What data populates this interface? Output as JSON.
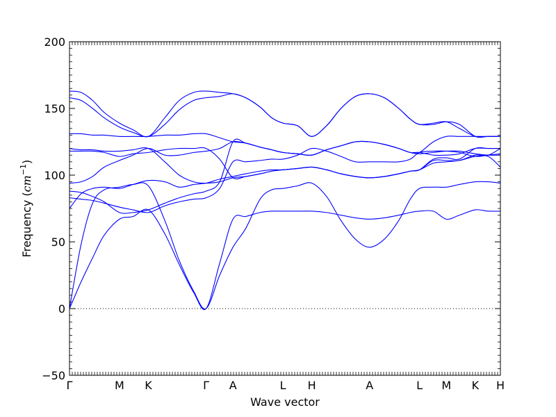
{
  "chart_data": {
    "type": "line",
    "title": "",
    "xlabel": "Wave vector",
    "ylabel": "Frequency (cm⁻¹)",
    "ylabel_text": "Frequency (",
    "ylabel_unit_base": "cm",
    "ylabel_unit_exp": "−1",
    "ylabel_close": ")",
    "ylim": [
      -50,
      200
    ],
    "yticks": [
      -50,
      0,
      50,
      100,
      150,
      200
    ],
    "xlim": [
      0,
      14.92
    ],
    "xticks": [
      {
        "label": "Γ",
        "x": 0
      },
      {
        "label": "M",
        "x": 1.73
      },
      {
        "label": "K",
        "x": 2.73
      },
      {
        "label": "Γ",
        "x": 4.73
      },
      {
        "label": "A",
        "x": 5.66
      },
      {
        "label": "L",
        "x": 7.39
      },
      {
        "label": "H",
        "x": 8.39
      },
      {
        "label": "A",
        "x": 10.39
      },
      {
        "label": "L",
        "x": 12.12
      },
      {
        "label": "M",
        "x": 13.05
      },
      {
        "label": "K",
        "x": 14.05
      },
      {
        "label": "H",
        "x": 14.92
      }
    ],
    "zero_line": true,
    "grid": false,
    "line_color": "#0000ff",
    "series": [
      {
        "x": [
          0,
          0.4,
          0.8,
          1.2,
          1.73,
          2.2,
          2.73,
          3.3,
          3.8,
          4.3,
          4.73,
          5.2,
          5.66,
          6.1,
          6.6,
          7.0,
          7.39,
          7.9,
          8.39,
          8.9,
          9.4,
          9.9,
          10.39,
          10.9,
          11.4,
          11.8,
          12.12,
          12.6,
          13.05,
          13.5,
          14.05,
          14.5,
          14.92
        ],
        "values": [
          0,
          48,
          79,
          89,
          91,
          93,
          92,
          66,
          36,
          13,
          0,
          25,
          46,
          60,
          82,
          89,
          90,
          92,
          94,
          84,
          66,
          52,
          46,
          52,
          66,
          82,
          90,
          91,
          91,
          93,
          95,
          95,
          94
        ]
      },
      {
        "x": [
          0,
          0.4,
          0.8,
          1.2,
          1.73,
          2.2,
          2.73,
          3.3,
          3.8,
          4.3,
          4.73,
          5.2,
          5.66,
          6.1,
          6.6,
          7.0,
          7.39,
          7.9,
          8.39,
          8.9,
          9.4,
          9.9,
          10.39,
          10.9,
          11.4,
          11.8,
          12.12,
          12.6,
          13.05,
          13.5,
          14.05,
          14.5,
          14.92
        ],
        "values": [
          0,
          20,
          38,
          55,
          67,
          69,
          74,
          56,
          33,
          12,
          0,
          34,
          67,
          69,
          72,
          73,
          73,
          73,
          73,
          72,
          70,
          68,
          67,
          68,
          70,
          72,
          73,
          73,
          67,
          70,
          74,
          73,
          73
        ]
      },
      {
        "x": [
          0,
          0.4,
          0.8,
          1.2,
          1.73,
          2.2,
          2.73,
          3.3,
          3.8,
          4.3,
          4.73,
          5.2,
          5.66,
          6.1,
          6.6,
          7.0,
          7.39,
          7.9,
          8.39,
          8.9,
          9.4,
          9.9,
          10.39,
          10.9,
          11.4,
          11.8,
          12.12,
          12.6,
          13.05,
          13.5,
          14.05,
          14.5,
          14.92
        ],
        "values": [
          75,
          86,
          90,
          91,
          90,
          93,
          96,
          95,
          91,
          93,
          94,
          97,
          99,
          101,
          103,
          104,
          104,
          105,
          106,
          104,
          101,
          99,
          98,
          99,
          101,
          103,
          104,
          109,
          110,
          111,
          114,
          114,
          106
        ]
      },
      {
        "x": [
          0,
          0.4,
          0.8,
          1.2,
          1.73,
          2.2,
          2.73,
          3.3,
          3.8,
          4.3,
          4.73,
          5.2,
          5.66,
          6.1,
          6.6,
          7.0,
          7.39,
          7.9,
          8.39,
          8.9,
          9.4,
          9.9,
          10.39,
          10.9,
          11.4,
          11.8,
          12.12,
          12.6,
          13.05,
          13.5,
          14.05,
          14.5,
          14.92
        ],
        "values": [
          83,
          82,
          81,
          79,
          76,
          74,
          72,
          77,
          80,
          82,
          83,
          90,
          110,
          110,
          111,
          112,
          112,
          115,
          120,
          118,
          114,
          110,
          110,
          110,
          110,
          112,
          117,
          118,
          118,
          117,
          114,
          115,
          116
        ]
      },
      {
        "x": [
          0,
          0.4,
          0.8,
          1.2,
          1.73,
          2.2,
          2.73,
          3.3,
          3.8,
          4.3,
          4.73,
          5.2,
          5.66,
          6.1,
          6.6,
          7.0,
          7.39,
          7.9,
          8.39,
          8.9,
          9.4,
          9.9,
          10.39,
          10.9,
          11.4,
          11.8,
          12.12,
          12.6,
          13.05,
          13.5,
          14.05,
          14.5,
          14.92
        ],
        "values": [
          88,
          87,
          84,
          80,
          72,
          72,
          74,
          79,
          83,
          86,
          88,
          95,
          125,
          124,
          121,
          119,
          117,
          116,
          115,
          119,
          122,
          125,
          125,
          123,
          120,
          117,
          116,
          117,
          118,
          118,
          116,
          115,
          115
        ]
      },
      {
        "x": [
          0,
          0.4,
          0.8,
          1.2,
          1.73,
          2.2,
          2.73,
          3.3,
          3.8,
          4.3,
          4.73,
          5.2,
          5.66,
          6.1,
          6.6,
          7.0,
          7.39,
          7.9,
          8.39,
          8.9,
          9.4,
          9.9,
          10.39,
          10.9,
          11.4,
          11.8,
          12.12,
          12.6,
          13.05,
          13.5,
          14.05,
          14.5,
          14.92
        ],
        "values": [
          118,
          118,
          118,
          117,
          114,
          116,
          117,
          119,
          120,
          120,
          120,
          112,
          98,
          99,
          101,
          103,
          104,
          105,
          106,
          104,
          101,
          99,
          98,
          99,
          101,
          103,
          104,
          112,
          113,
          112,
          120,
          120,
          120
        ]
      },
      {
        "x": [
          0,
          0.4,
          0.8,
          1.2,
          1.73,
          2.2,
          2.73,
          3.3,
          3.8,
          4.3,
          4.73,
          5.2,
          5.66,
          6.1,
          6.6,
          7.0,
          7.39,
          7.9,
          8.39,
          8.9,
          9.4,
          9.9,
          10.39,
          10.9,
          11.4,
          11.8,
          12.12,
          12.6,
          13.05,
          13.5,
          14.05,
          14.5,
          14.92
        ],
        "values": [
          120,
          119,
          119,
          118,
          118,
          119,
          120,
          110,
          100,
          95,
          94,
          95,
          98,
          99,
          101,
          103,
          104,
          105,
          106,
          104,
          101,
          99,
          98,
          99,
          101,
          103,
          104,
          111,
          111,
          111,
          115,
          115,
          120
        ]
      },
      {
        "x": [
          0,
          0.4,
          0.8,
          1.2,
          1.73,
          2.2,
          2.73,
          3.3,
          3.8,
          4.3,
          4.73,
          5.2,
          5.66,
          6.1,
          6.6,
          7.0,
          7.39,
          7.9,
          8.39,
          8.9,
          9.4,
          9.9,
          10.39,
          10.9,
          11.4,
          11.8,
          12.12,
          12.6,
          13.05,
          13.5,
          14.05,
          14.5,
          14.92
        ],
        "values": [
          94,
          95,
          99,
          106,
          111,
          115,
          120,
          115,
          115,
          117,
          118,
          120,
          125,
          124,
          121,
          119,
          117,
          116,
          115,
          119,
          122,
          125,
          125,
          123,
          120,
          117,
          117,
          125,
          129,
          129,
          129,
          129,
          129
        ]
      },
      {
        "x": [
          0,
          0.4,
          0.8,
          1.2,
          1.73,
          2.2,
          2.73,
          3.3,
          3.8,
          4.3,
          4.73,
          5.2,
          5.66,
          6.1,
          6.6,
          7.0,
          7.39,
          7.9,
          8.39,
          8.9,
          9.4,
          9.9,
          10.39,
          10.9,
          11.4,
          11.8,
          12.12,
          12.6,
          13.05,
          13.5,
          14.05,
          14.5,
          14.92
        ],
        "values": [
          131,
          131,
          130,
          130,
          129,
          129,
          129,
          130,
          130,
          131,
          131,
          128,
          125,
          124,
          121,
          119,
          117,
          116,
          115,
          119,
          122,
          125,
          125,
          123,
          120,
          117,
          117,
          115,
          115,
          116,
          120,
          120,
          120
        ]
      },
      {
        "x": [
          0,
          0.4,
          0.8,
          1.2,
          1.73,
          2.2,
          2.73,
          3.3,
          3.8,
          4.3,
          4.73,
          5.2,
          5.66,
          6.1,
          6.6,
          7.0,
          7.39,
          7.9,
          8.39,
          8.9,
          9.4,
          9.9,
          10.39,
          10.9,
          11.4,
          11.8,
          12.12,
          12.6,
          13.05,
          13.5,
          14.05,
          14.5,
          14.92
        ],
        "values": [
          158,
          156,
          150,
          143,
          136,
          132,
          129,
          138,
          149,
          156,
          158,
          159,
          161,
          158,
          151,
          143,
          139,
          137,
          129,
          137,
          150,
          159,
          161,
          158,
          150,
          142,
          138,
          138,
          140,
          138,
          129,
          129,
          129
        ]
      },
      {
        "x": [
          0,
          0.4,
          0.8,
          1.2,
          1.73,
          2.2,
          2.73,
          3.3,
          3.8,
          4.3,
          4.73,
          5.2,
          5.66,
          6.1,
          6.6,
          7.0,
          7.39,
          7.9,
          8.39,
          8.9,
          9.4,
          9.9,
          10.39,
          10.9,
          11.4,
          11.8,
          12.12,
          12.6,
          13.05,
          13.5,
          14.05,
          14.5,
          14.92
        ],
        "values": [
          163,
          162,
          156,
          147,
          139,
          134,
          129,
          143,
          156,
          162,
          163,
          162,
          161,
          158,
          151,
          143,
          139,
          137,
          129,
          137,
          150,
          159,
          161,
          158,
          150,
          142,
          138,
          139,
          140,
          135,
          129,
          129,
          129
        ]
      }
    ]
  }
}
